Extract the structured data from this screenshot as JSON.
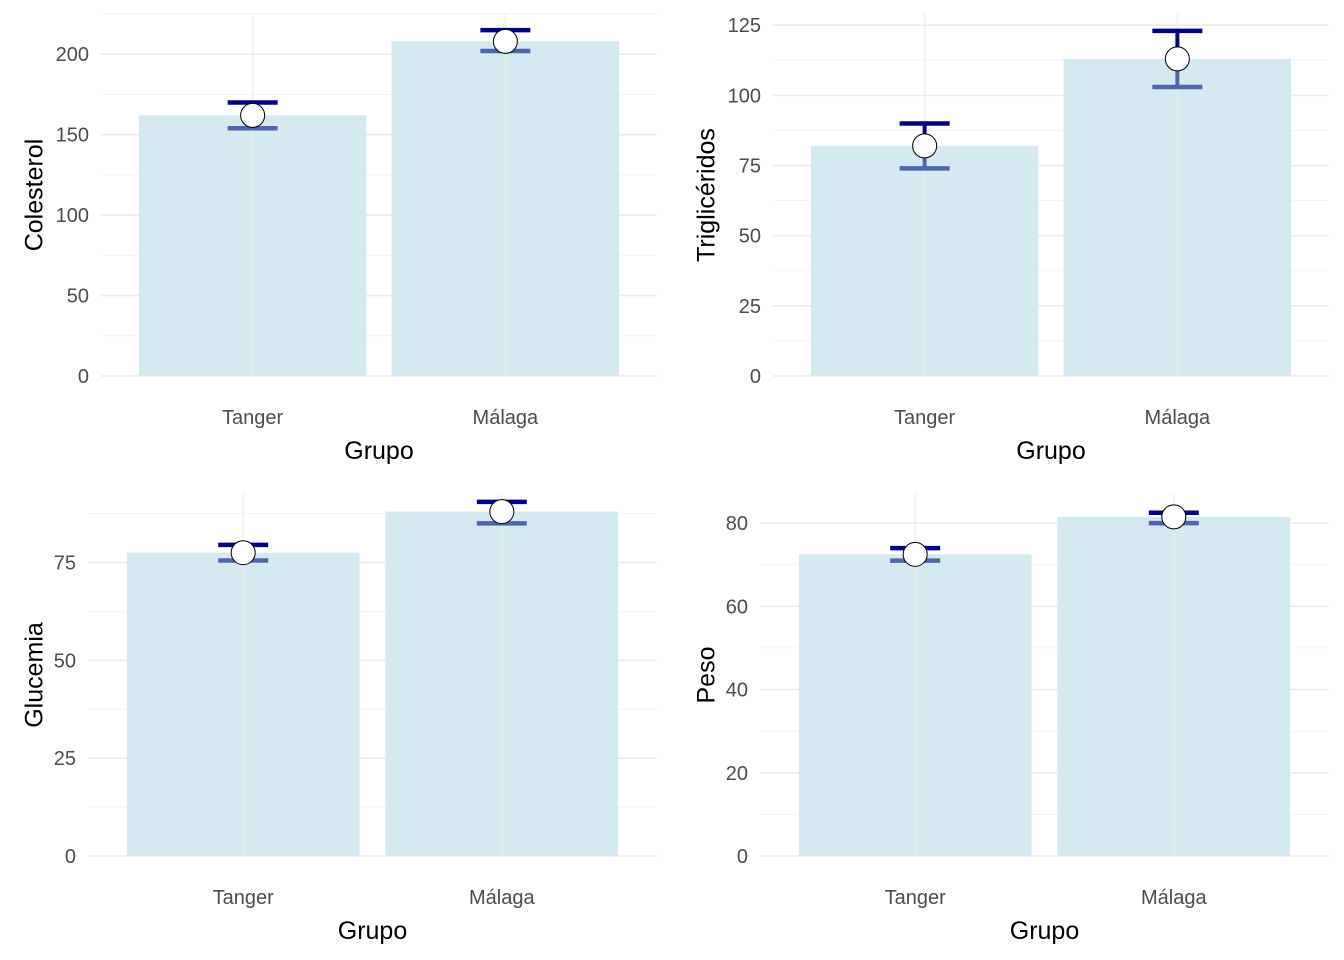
{
  "colors": {
    "bar_fill": "#d5e9f0",
    "upper_whisker": "#00008b",
    "lower_whisker": "#4f65b0",
    "point_fill": "#ffffff",
    "point_stroke": "#000000",
    "grid_major": "#ebebeb",
    "grid_minor": "#f2f2f2"
  },
  "chart_data": [
    {
      "type": "bar",
      "xlabel": "Grupo",
      "ylabel": "Colesterol",
      "categories": [
        "Tanger",
        "Málaga"
      ],
      "values": [
        162,
        208
      ],
      "error_lower": [
        154,
        202
      ],
      "error_upper": [
        170,
        215
      ],
      "ylim": [
        0,
        225
      ],
      "yticks": [
        0,
        50,
        100,
        150,
        200
      ],
      "grid": true
    },
    {
      "type": "bar",
      "xlabel": "Grupo",
      "ylabel": "Triglicéridos",
      "categories": [
        "Tanger",
        "Málaga"
      ],
      "values": [
        82,
        113
      ],
      "error_lower": [
        74,
        103
      ],
      "error_upper": [
        90,
        123
      ],
      "ylim": [
        0,
        129
      ],
      "yticks": [
        0,
        25,
        50,
        75,
        100,
        125
      ],
      "grid": true
    },
    {
      "type": "bar",
      "xlabel": "Grupo",
      "ylabel": "Glucemia",
      "categories": [
        "Tanger",
        "Málaga"
      ],
      "values": [
        77.5,
        88
      ],
      "error_lower": [
        75.5,
        85
      ],
      "error_upper": [
        79.5,
        90.5
      ],
      "ylim": [
        0,
        92.5
      ],
      "yticks": [
        0,
        25,
        50,
        75
      ],
      "grid": true
    },
    {
      "type": "bar",
      "xlabel": "Grupo",
      "ylabel": "Peso",
      "categories": [
        "Tanger",
        "Málaga"
      ],
      "values": [
        72.5,
        81.5
      ],
      "error_lower": [
        71,
        80
      ],
      "error_upper": [
        74,
        82.5
      ],
      "ylim": [
        0,
        87
      ],
      "yticks": [
        0,
        20,
        40,
        60,
        80
      ],
      "grid": true
    }
  ]
}
